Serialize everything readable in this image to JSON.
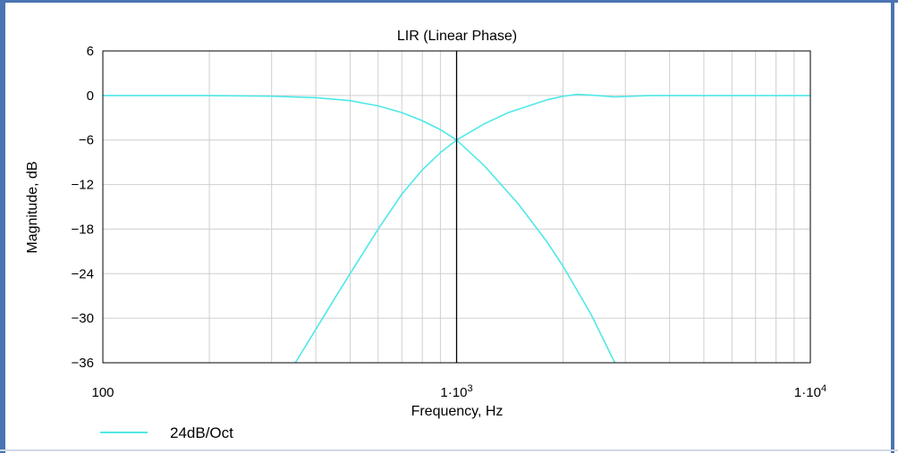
{
  "chart_data": {
    "type": "line",
    "title": "LIR (Linear Phase)",
    "xlabel": "Frequency, Hz",
    "ylabel": "Magnitude, dB",
    "x_scale": "log",
    "xlim": [
      100,
      10000
    ],
    "ylim": [
      -36,
      6
    ],
    "x_ticks": [
      {
        "value": 100,
        "label": "100",
        "sup": ""
      },
      {
        "value": 1000,
        "label": "1·10",
        "sup": "3"
      },
      {
        "value": 10000,
        "label": "1·10",
        "sup": "4"
      }
    ],
    "y_ticks": [
      {
        "value": 6,
        "label": "6"
      },
      {
        "value": 0,
        "label": "0"
      },
      {
        "value": -6,
        "label": "−6"
      },
      {
        "value": -12,
        "label": "−12"
      },
      {
        "value": -18,
        "label": "−18"
      },
      {
        "value": -24,
        "label": "−24"
      },
      {
        "value": -30,
        "label": "−30"
      },
      {
        "value": -36,
        "label": "−36"
      }
    ],
    "grid": true,
    "legend_position": "bottom-left",
    "series": [
      {
        "name": "24dB/Oct",
        "color": "#4fe8e8",
        "curves": [
          {
            "label": "lowpass",
            "x": [
              100,
              200,
              300,
              400,
              500,
              600,
              700,
              800,
              900,
              1000,
              1200,
              1500,
              1800,
              2000,
              2400,
              2800
            ],
            "y": [
              0,
              0,
              -0.1,
              -0.3,
              -0.7,
              -1.4,
              -2.3,
              -3.4,
              -4.6,
              -6,
              -9.5,
              -14.7,
              -19.7,
              -23,
              -29.5,
              -36
            ]
          },
          {
            "label": "highpass",
            "x": [
              350,
              400,
              450,
              500,
              600,
              700,
              800,
              900,
              1000,
              1200,
              1400,
              1600,
              1800,
              2000,
              2200,
              2500,
              2800,
              3500,
              5000,
              10000
            ],
            "y": [
              -36,
              -31.5,
              -27.5,
              -24,
              -18,
              -13.3,
              -10,
              -7.7,
              -6,
              -3.8,
              -2.3,
              -1.4,
              -0.6,
              -0.1,
              0.15,
              0,
              -0.2,
              0,
              0,
              0
            ]
          }
        ]
      }
    ]
  },
  "cursor": {
    "x": 1000
  }
}
